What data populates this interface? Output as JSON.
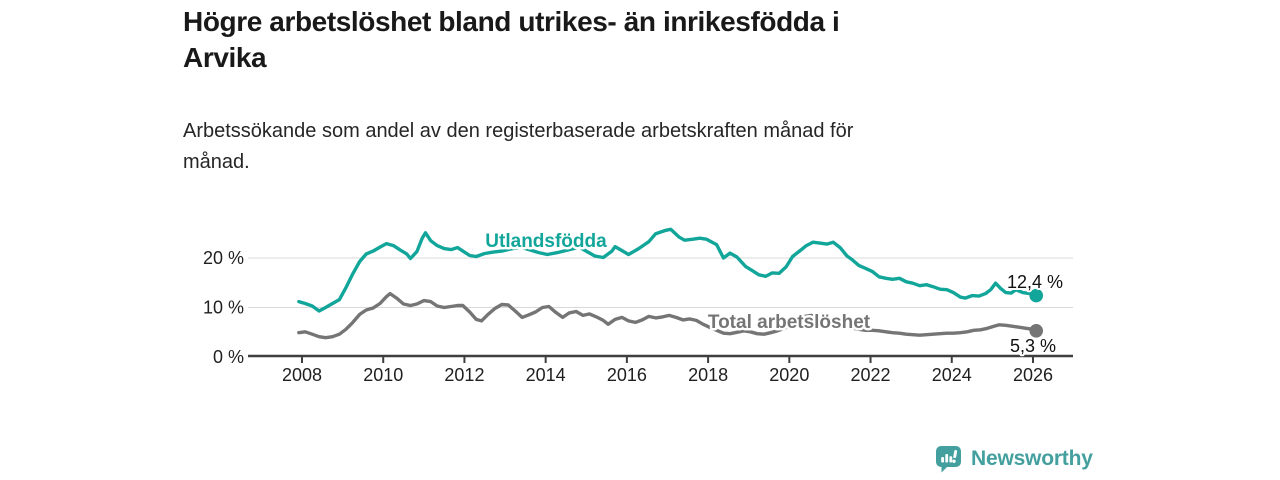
{
  "header": {
    "title": "Högre arbetslöshet bland utrikes- än inrikesfödda i Arvika",
    "title_lines": [
      "Högre arbetslöshet bland utrikes- än inrikesfödda i",
      "Arvika"
    ],
    "subtitle": "Arbetssökande som andel av den registerbaserade arbetskraften månad för månad.",
    "subtitle_lines": [
      "Arbetssökande som andel av den registerbaserade arbetskraften månad för",
      "månad."
    ]
  },
  "chart_data": {
    "type": "line",
    "title": "Högre arbetslöshet bland utrikes- än inrikesfödda i Arvika",
    "subtitle": "Arbetssökande som andel av den registerbaserade arbetskraften månad för månad.",
    "unit": "%",
    "grid": "horizontal",
    "legend_position": "inline-labels",
    "x_ticks": [
      2008,
      2010,
      2012,
      2014,
      2016,
      2018,
      2020,
      2022,
      2024,
      2026
    ],
    "y_ticks": [
      {
        "value": 0,
        "label": "0 %"
      },
      {
        "value": 10,
        "label": "10 %"
      },
      {
        "value": 20,
        "label": "20 %"
      }
    ],
    "xlim": [
      2006.7,
      2027.0
    ],
    "ylim": [
      0,
      27
    ],
    "series": [
      {
        "name": "Utlandsfödda",
        "color": "#12a69a",
        "end_value": 12.4,
        "end_label": "12,4 %",
        "points": [
          [
            2007.92,
            11.2
          ],
          [
            2008.08,
            10.8
          ],
          [
            2008.25,
            10.3
          ],
          [
            2008.42,
            9.3
          ],
          [
            2008.58,
            10.0
          ],
          [
            2008.75,
            10.8
          ],
          [
            2008.92,
            11.6
          ],
          [
            2009.08,
            14.0
          ],
          [
            2009.25,
            16.8
          ],
          [
            2009.42,
            19.3
          ],
          [
            2009.58,
            20.8
          ],
          [
            2009.75,
            21.4
          ],
          [
            2009.92,
            22.2
          ],
          [
            2010.08,
            22.9
          ],
          [
            2010.25,
            22.5
          ],
          [
            2010.42,
            21.6
          ],
          [
            2010.58,
            20.8
          ],
          [
            2010.67,
            19.9
          ],
          [
            2010.83,
            21.3
          ],
          [
            2010.96,
            24.0
          ],
          [
            2011.04,
            25.1
          ],
          [
            2011.17,
            23.5
          ],
          [
            2011.33,
            22.5
          ],
          [
            2011.5,
            21.9
          ],
          [
            2011.67,
            21.7
          ],
          [
            2011.83,
            22.1
          ],
          [
            2012.0,
            21.2
          ],
          [
            2012.13,
            20.5
          ],
          [
            2012.29,
            20.3
          ],
          [
            2012.5,
            20.9
          ],
          [
            2012.71,
            21.2
          ],
          [
            2012.92,
            21.4
          ],
          [
            2013.13,
            21.8
          ],
          [
            2013.38,
            22.2
          ],
          [
            2013.63,
            21.6
          ],
          [
            2013.83,
            21.1
          ],
          [
            2014.04,
            20.7
          ],
          [
            2014.29,
            21.1
          ],
          [
            2014.54,
            21.6
          ],
          [
            2014.83,
            22.2
          ],
          [
            2015.04,
            21.2
          ],
          [
            2015.21,
            20.4
          ],
          [
            2015.42,
            20.1
          ],
          [
            2015.63,
            21.4
          ],
          [
            2015.71,
            22.3
          ],
          [
            2015.88,
            21.5
          ],
          [
            2016.04,
            20.7
          ],
          [
            2016.29,
            21.9
          ],
          [
            2016.54,
            23.3
          ],
          [
            2016.71,
            24.9
          ],
          [
            2016.96,
            25.6
          ],
          [
            2017.08,
            25.8
          ],
          [
            2017.29,
            24.2
          ],
          [
            2017.42,
            23.6
          ],
          [
            2017.63,
            23.8
          ],
          [
            2017.79,
            24.0
          ],
          [
            2017.96,
            23.8
          ],
          [
            2018.21,
            22.7
          ],
          [
            2018.38,
            20.0
          ],
          [
            2018.54,
            21.0
          ],
          [
            2018.71,
            20.2
          ],
          [
            2018.92,
            18.3
          ],
          [
            2019.08,
            17.5
          ],
          [
            2019.25,
            16.6
          ],
          [
            2019.42,
            16.3
          ],
          [
            2019.58,
            17.0
          ],
          [
            2019.75,
            16.9
          ],
          [
            2019.92,
            18.2
          ],
          [
            2020.08,
            20.3
          ],
          [
            2020.25,
            21.4
          ],
          [
            2020.42,
            22.5
          ],
          [
            2020.58,
            23.2
          ],
          [
            2020.75,
            23.0
          ],
          [
            2020.92,
            22.8
          ],
          [
            2021.08,
            23.2
          ],
          [
            2021.25,
            22.1
          ],
          [
            2021.42,
            20.4
          ],
          [
            2021.54,
            19.7
          ],
          [
            2021.71,
            18.5
          ],
          [
            2021.88,
            17.9
          ],
          [
            2022.04,
            17.3
          ],
          [
            2022.21,
            16.2
          ],
          [
            2022.38,
            15.9
          ],
          [
            2022.54,
            15.7
          ],
          [
            2022.71,
            15.9
          ],
          [
            2022.88,
            15.2
          ],
          [
            2023.04,
            14.9
          ],
          [
            2023.21,
            14.4
          ],
          [
            2023.38,
            14.6
          ],
          [
            2023.54,
            14.2
          ],
          [
            2023.71,
            13.7
          ],
          [
            2023.88,
            13.6
          ],
          [
            2024.04,
            13.0
          ],
          [
            2024.21,
            12.1
          ],
          [
            2024.33,
            11.9
          ],
          [
            2024.5,
            12.4
          ],
          [
            2024.67,
            12.3
          ],
          [
            2024.83,
            12.8
          ],
          [
            2024.96,
            13.6
          ],
          [
            2025.08,
            14.9
          ],
          [
            2025.21,
            13.8
          ],
          [
            2025.33,
            13.0
          ],
          [
            2025.46,
            12.9
          ],
          [
            2025.58,
            13.6
          ],
          [
            2025.75,
            13.0
          ],
          [
            2025.92,
            12.8
          ],
          [
            2026.08,
            12.4
          ]
        ]
      },
      {
        "name": "Total arbetslöshet",
        "color": "#757575",
        "end_value": 5.3,
        "end_label": "5,3 %",
        "points": [
          [
            2007.92,
            4.9
          ],
          [
            2008.08,
            5.1
          ],
          [
            2008.25,
            4.6
          ],
          [
            2008.42,
            4.1
          ],
          [
            2008.58,
            3.9
          ],
          [
            2008.75,
            4.1
          ],
          [
            2008.92,
            4.6
          ],
          [
            2009.08,
            5.6
          ],
          [
            2009.25,
            7.0
          ],
          [
            2009.42,
            8.6
          ],
          [
            2009.58,
            9.5
          ],
          [
            2009.75,
            9.9
          ],
          [
            2009.92,
            10.8
          ],
          [
            2010.08,
            12.2
          ],
          [
            2010.17,
            12.8
          ],
          [
            2010.33,
            11.9
          ],
          [
            2010.5,
            10.7
          ],
          [
            2010.67,
            10.4
          ],
          [
            2010.83,
            10.7
          ],
          [
            2011.0,
            11.4
          ],
          [
            2011.17,
            11.2
          ],
          [
            2011.33,
            10.3
          ],
          [
            2011.5,
            10.0
          ],
          [
            2011.67,
            10.2
          ],
          [
            2011.83,
            10.4
          ],
          [
            2011.96,
            10.4
          ],
          [
            2012.13,
            9.1
          ],
          [
            2012.29,
            7.6
          ],
          [
            2012.42,
            7.3
          ],
          [
            2012.58,
            8.6
          ],
          [
            2012.75,
            9.8
          ],
          [
            2012.92,
            10.6
          ],
          [
            2013.08,
            10.5
          ],
          [
            2013.25,
            9.3
          ],
          [
            2013.42,
            8.0
          ],
          [
            2013.58,
            8.5
          ],
          [
            2013.75,
            9.1
          ],
          [
            2013.92,
            10.0
          ],
          [
            2014.08,
            10.2
          ],
          [
            2014.25,
            9.0
          ],
          [
            2014.42,
            8.0
          ],
          [
            2014.58,
            8.9
          ],
          [
            2014.75,
            9.2
          ],
          [
            2014.92,
            8.4
          ],
          [
            2015.08,
            8.7
          ],
          [
            2015.25,
            8.1
          ],
          [
            2015.42,
            7.4
          ],
          [
            2015.54,
            6.6
          ],
          [
            2015.71,
            7.6
          ],
          [
            2015.88,
            8.0
          ],
          [
            2016.04,
            7.3
          ],
          [
            2016.21,
            7.0
          ],
          [
            2016.38,
            7.5
          ],
          [
            2016.54,
            8.2
          ],
          [
            2016.71,
            7.9
          ],
          [
            2016.88,
            8.1
          ],
          [
            2017.04,
            8.4
          ],
          [
            2017.21,
            8.0
          ],
          [
            2017.38,
            7.5
          ],
          [
            2017.54,
            7.7
          ],
          [
            2017.71,
            7.4
          ],
          [
            2017.88,
            6.6
          ],
          [
            2018.04,
            6.0
          ],
          [
            2018.21,
            5.4
          ],
          [
            2018.38,
            4.8
          ],
          [
            2018.54,
            4.7
          ],
          [
            2018.71,
            5.0
          ],
          [
            2018.88,
            5.3
          ],
          [
            2019.04,
            5.1
          ],
          [
            2019.21,
            4.7
          ],
          [
            2019.38,
            4.6
          ],
          [
            2019.54,
            4.9
          ],
          [
            2019.71,
            5.3
          ],
          [
            2019.88,
            5.8
          ],
          [
            2020.04,
            6.4
          ],
          [
            2020.21,
            7.4
          ],
          [
            2020.38,
            8.2
          ],
          [
            2020.54,
            8.4
          ],
          [
            2020.71,
            8.0
          ],
          [
            2020.88,
            7.6
          ],
          [
            2021.04,
            7.4
          ],
          [
            2021.21,
            6.9
          ],
          [
            2021.38,
            6.3
          ],
          [
            2021.54,
            5.9
          ],
          [
            2021.71,
            5.6
          ],
          [
            2021.88,
            5.4
          ],
          [
            2022.04,
            5.4
          ],
          [
            2022.21,
            5.3
          ],
          [
            2022.38,
            5.1
          ],
          [
            2022.54,
            4.9
          ],
          [
            2022.71,
            4.8
          ],
          [
            2022.88,
            4.6
          ],
          [
            2023.04,
            4.5
          ],
          [
            2023.21,
            4.4
          ],
          [
            2023.38,
            4.5
          ],
          [
            2023.54,
            4.6
          ],
          [
            2023.71,
            4.7
          ],
          [
            2023.88,
            4.8
          ],
          [
            2024.04,
            4.8
          ],
          [
            2024.21,
            4.9
          ],
          [
            2024.38,
            5.1
          ],
          [
            2024.54,
            5.4
          ],
          [
            2024.71,
            5.5
          ],
          [
            2024.88,
            5.8
          ],
          [
            2025.04,
            6.2
          ],
          [
            2025.17,
            6.5
          ],
          [
            2025.33,
            6.4
          ],
          [
            2025.5,
            6.2
          ],
          [
            2025.67,
            6.0
          ],
          [
            2025.83,
            5.8
          ],
          [
            2026.0,
            5.6
          ],
          [
            2026.08,
            5.3
          ]
        ]
      }
    ]
  },
  "colors": {
    "accent_teal": "#12a69a",
    "series_gray": "#757575",
    "axis": "#3e3e3e",
    "gridline": "#d9d9d9",
    "brand": "#44a09e"
  },
  "footer": {
    "brand": "Newsworthy"
  }
}
